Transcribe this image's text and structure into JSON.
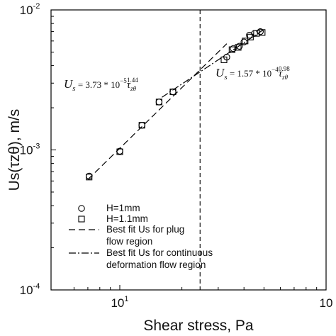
{
  "chart_data": {
    "type": "scatter",
    "xlabel": "Shear stress, Pa",
    "ylabel": "Us(τzθ), m/s",
    "xscale": "log",
    "yscale": "log",
    "xlim": [
      6,
      100
    ],
    "ylim": [
      0.0001,
      0.01
    ],
    "x_ticks": [
      {
        "value": 10,
        "base": "10",
        "exp": "1"
      },
      {
        "value": 100,
        "base": "10",
        "exp": ""
      }
    ],
    "y_ticks": [
      {
        "value": 0.0001,
        "base": "10",
        "exp": "-4"
      },
      {
        "value": 0.001,
        "base": "10",
        "exp": "-3"
      },
      {
        "value": 0.01,
        "base": "10",
        "exp": "-2"
      }
    ],
    "grid": false,
    "vline": {
      "x": 24.5,
      "style": "dashed"
    },
    "series": [
      {
        "name": "H=1mm",
        "marker": "circle",
        "points": [
          [
            7.1,
            0.00065
          ],
          [
            10,
            0.00098
          ],
          [
            12.8,
            0.0015
          ],
          [
            15.5,
            0.0022
          ],
          [
            18.1,
            0.0026
          ],
          [
            33,
            0.0046
          ],
          [
            35.5,
            0.0053
          ],
          [
            38,
            0.0055
          ],
          [
            40,
            0.0059
          ],
          [
            42.5,
            0.0066
          ],
          [
            45,
            0.0068
          ],
          [
            48,
            0.007
          ]
        ]
      },
      {
        "name": "H=1.1mm",
        "marker": "square",
        "points": [
          [
            7.1,
            0.00064
          ],
          [
            10,
            0.00097
          ],
          [
            12.8,
            0.0015
          ],
          [
            15.5,
            0.0022
          ],
          [
            18.1,
            0.0026
          ],
          [
            32,
            0.0044
          ],
          [
            35,
            0.0052
          ],
          [
            37.5,
            0.0054
          ],
          [
            40.5,
            0.006
          ],
          [
            43,
            0.0064
          ],
          [
            46,
            0.0068
          ],
          [
            49,
            0.0069
          ]
        ]
      },
      {
        "name": "Best fit Us for plug flow region",
        "line": "dashed",
        "fit": {
          "coef": 3.73e-05,
          "exp": 1.44
        },
        "range": [
          7,
          33
        ]
      },
      {
        "name": "Best fit Us for continuous deformation flow region",
        "line": "dashdot",
        "fit": {
          "coef": 0.000157,
          "exp": 0.98
        },
        "range": [
          16,
          50
        ]
      }
    ],
    "legend": {
      "placement": "lower-left",
      "entries": [
        {
          "symbol": "circle",
          "lines": [
            "H=1mm"
          ]
        },
        {
          "symbol": "square",
          "lines": [
            "H=1.1mm"
          ]
        },
        {
          "symbol": "dashed",
          "lines": [
            "Best fit Us for plug",
            "flow region"
          ]
        },
        {
          "symbol": "dashdot",
          "lines": [
            "Best fit Us for continuous",
            "deformation flow region"
          ]
        }
      ]
    },
    "annotations": [
      {
        "id": "left",
        "prefix": "U",
        "sub": "s",
        "mid": " = 3.73 * 10",
        "exp1": "−5",
        "tau": "τ",
        "tau_sub": "zθ",
        "exp2": "1.44"
      },
      {
        "id": "right",
        "prefix": "U",
        "sub": "s",
        "mid": " = 1.57 * 10",
        "exp1": "−4",
        "tau": "τ",
        "tau_sub": "zθ",
        "exp2": "0.98"
      }
    ]
  }
}
